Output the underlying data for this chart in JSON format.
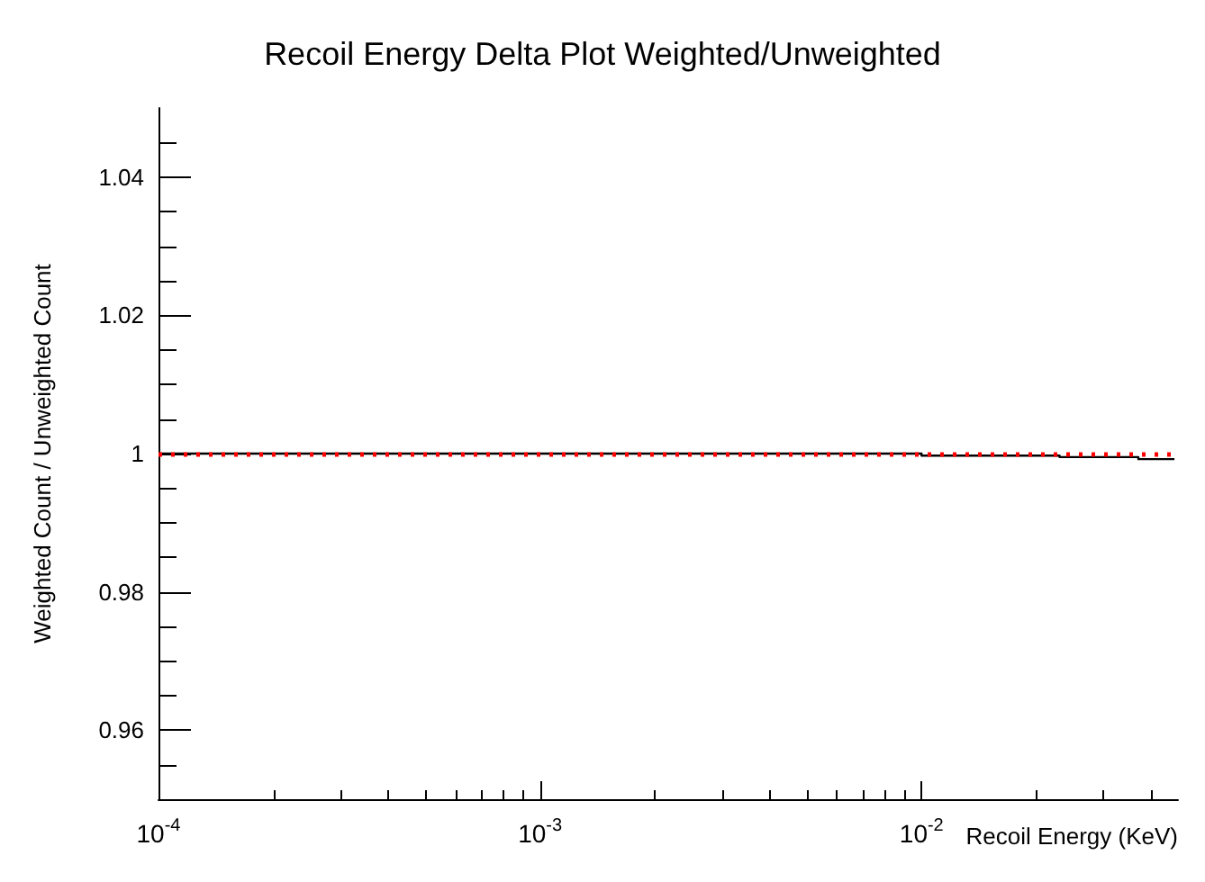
{
  "chart_data": {
    "type": "step",
    "title": "Recoil Energy Delta Plot Weighted/Unweighted",
    "xlabel": "Recoil Energy (KeV)",
    "ylabel": "Weighted Count / Unweighted Count",
    "log": "x",
    "xlim": [
      0.0001,
      0.047
    ],
    "xticks": [
      {
        "value": 0.0001,
        "label": "10$^{-4}$"
      },
      {
        "value": 0.001,
        "label": "10$^{-3}$"
      },
      {
        "value": 0.01,
        "label": "10$^{-2}$"
      }
    ],
    "ylim": [
      0.95,
      1.05
    ],
    "yticks": [
      0.96,
      0.98,
      1,
      1.02,
      1.04
    ],
    "x": [
      0.0001,
      0.01,
      0.023,
      0.037,
      0.046
    ],
    "series": [
      {
        "color": "#000000",
        "values": [
          1,
          0.9997,
          0.9995,
          0.9992,
          0.9992
        ]
      }
    ],
    "ref_lines": [
      {
        "axis": "y",
        "value": 1,
        "color": "#ff0000",
        "line_style": "dotted"
      }
    ]
  }
}
